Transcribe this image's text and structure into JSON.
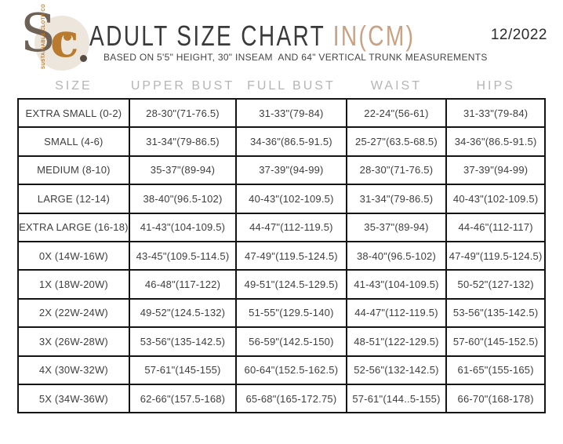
{
  "logo": {
    "monogram_s": "S",
    "monogram_c": "c",
    "vertical_text": "SUSTAINABLE CLOTH CO"
  },
  "header": {
    "title_main": "ADULT SIZE CHART",
    "title_accent": " IN(CM)",
    "subtitle": "BASED ON 5'5\" HEIGHT, 30\" INSEAM  AND 64\" VERTICAL TRUNK MEASUREMENTS",
    "date": "12/2022"
  },
  "chart_data": {
    "type": "table",
    "columns": [
      "SIZE",
      "UPPER BUST",
      "FULL BUST",
      "WAIST",
      "HIPS"
    ],
    "rows": [
      [
        "EXTRA SMALL (0-2)",
        "28-30\"(71-76.5)",
        "31-33\"(79-84)",
        "22-24\"(56-61)",
        "31-33\"(79-84)"
      ],
      [
        "SMALL (4-6)",
        "31-34\"(79-86.5)",
        "34-36\"(86.5-91.5)",
        "25-27\"(63.5-68.5)",
        "34-36\"(86.5-91.5)"
      ],
      [
        "MEDIUM (8-10)",
        "35-37\"(89-94)",
        "37-39\"(94-99)",
        "28-30\"(71-76.5)",
        "37-39\"(94-99)"
      ],
      [
        "LARGE (12-14)",
        "38-40\"(96.5-102)",
        "40-43\"(102-109.5)",
        "31-34\"(79-86.5)",
        "40-43\"(102-109.5)"
      ],
      [
        "EXTRA LARGE (16-18)",
        "41-43\"(104-109.5)",
        "44-47\"(112-119.5)",
        "35-37\"(89-94)",
        "44-46\"(112-117)"
      ],
      [
        "0X (14W-16W)",
        "43-45\"(109.5-114.5)",
        "47-49\"(119.5-124.5)",
        "38-40\"(96.5-102)",
        "47-49\"(119.5-124.5)"
      ],
      [
        "1X (18W-20W)",
        "46-48\"(117-122)",
        "49-51\"(124.5-129.5)",
        "41-43\"(104-109.5)",
        "50-52\"(127-132)"
      ],
      [
        "2X (22W-24W)",
        "49-52\"(124.5-132)",
        "51-55\"(129.5-140)",
        "44-47\"(112-119.5)",
        "53-56\"(135-142.5)"
      ],
      [
        "3X (26W-28W)",
        "53-56\"(135-142.5)",
        "56-59\"(142.5-150)",
        "48-51\"(122-129.5)",
        "57-60\"(145-152.5)"
      ],
      [
        "4X (30W-32W)",
        "57-61\"(145-155)",
        "60-64\"(152.5-162.5)",
        "52-56\"(132-142.5)",
        "61-65\"(155-165)"
      ],
      [
        "5X (34W-36W)",
        "62-66\"(157.5-168)",
        "65-68\"(165-172.75)",
        "57-61\"(144..5-155)",
        "66-70\"(168-178)"
      ]
    ]
  },
  "colors": {
    "accent-tan": "#c9a183",
    "title-gray": "#3a3a3a",
    "header-label-gray": "#b5b5b5",
    "cell-text": "#3e3e3e",
    "table-border": "#141414",
    "logo-circle": "#ece6dd",
    "logo-s": "#6e6156",
    "logo-c": "#b97a2d",
    "logo-dot": "#564c42"
  }
}
